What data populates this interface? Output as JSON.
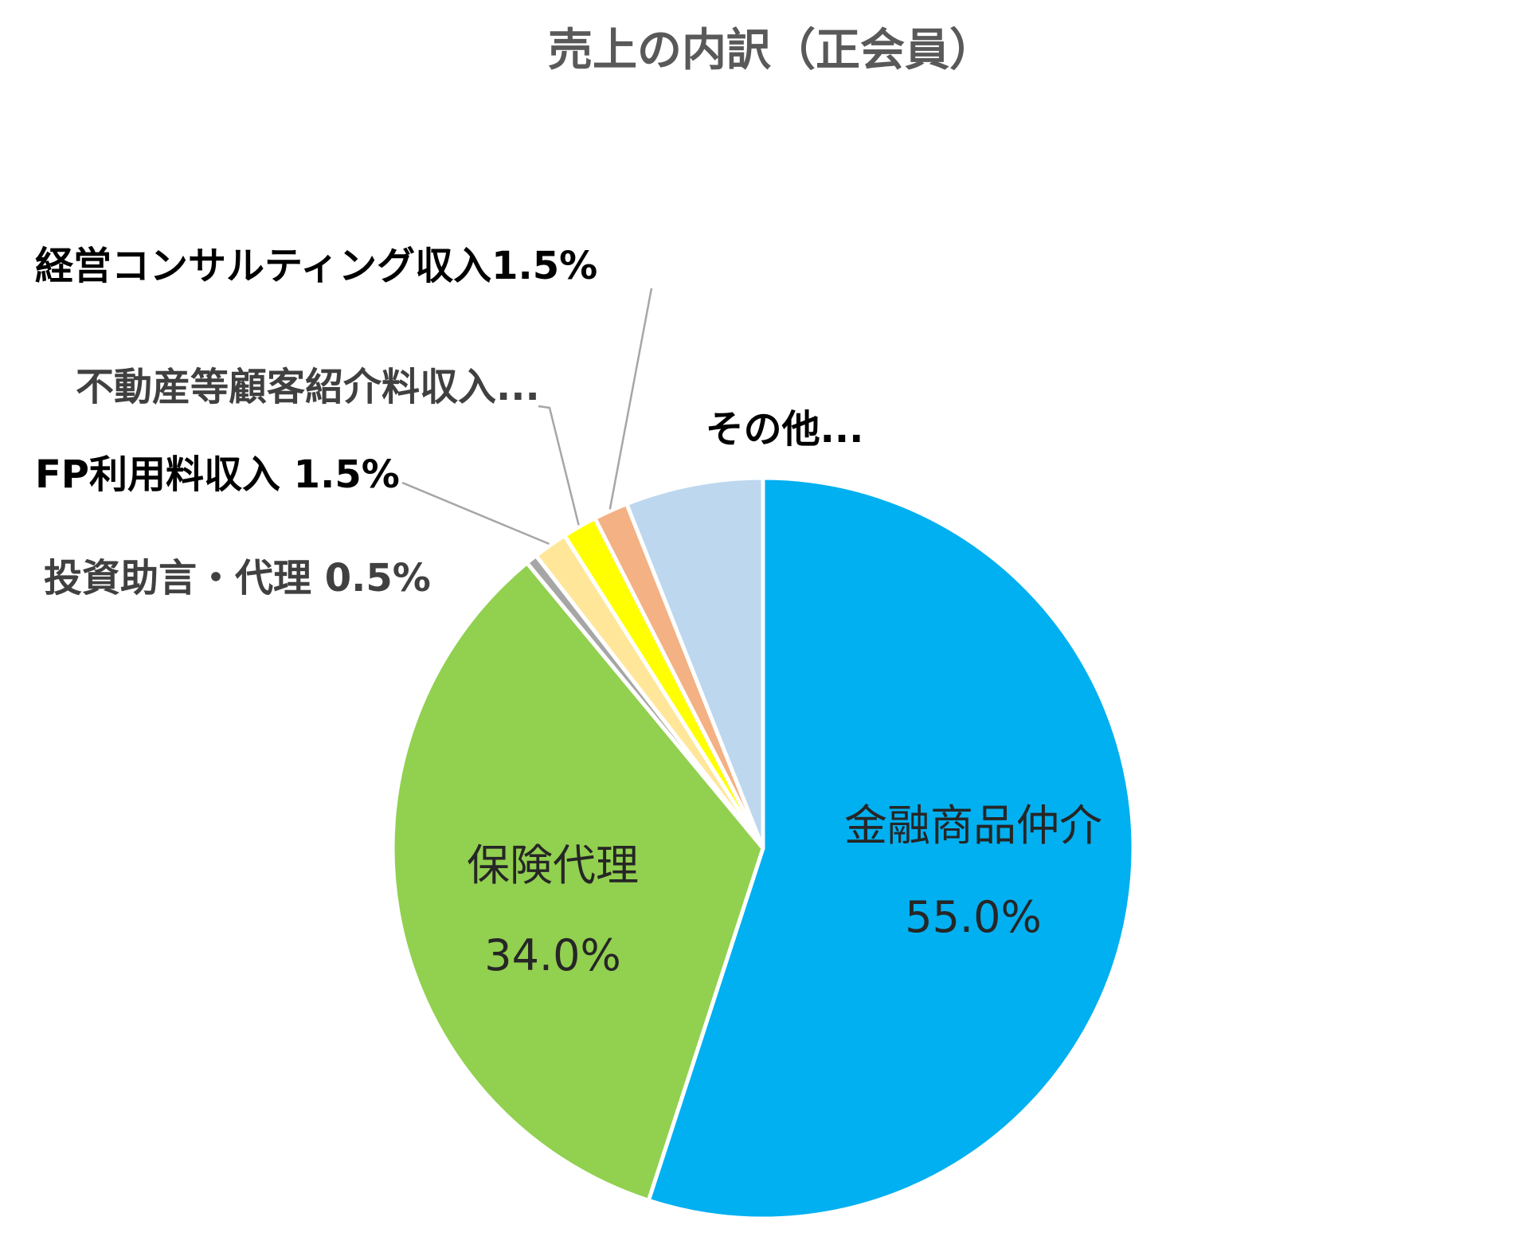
{
  "chart_data": {
    "type": "pie",
    "title": "売上の内訳（正会員）",
    "slices": [
      {
        "label": "金融商品仲介",
        "value": 55.0,
        "value_label": "55.0%",
        "color": "#00B0F0",
        "label_color": "#262626"
      },
      {
        "label": "保険代理",
        "value": 34.0,
        "value_label": "34.0%",
        "color": "#92D050",
        "label_color": "#262626"
      },
      {
        "label": "投資助言・代理 0.5%",
        "value": 0.5,
        "color": "#A6A6A6",
        "label_color": "#404040"
      },
      {
        "label": "FP利用料収入 1.5%",
        "value": 1.5,
        "color": "#FFE699",
        "label_color": "#000000"
      },
      {
        "label": "不動産等顧客紹介料収入...",
        "value": 1.5,
        "color": "#FFFF00",
        "label_color": "#404040"
      },
      {
        "label": "経営コンサルティング収入1.5%",
        "value": 1.5,
        "color": "#F4B183",
        "label_color": "#000000"
      },
      {
        "label": "その他...",
        "value": 6.0,
        "color": "#BDD7EE",
        "label_color": "#000000"
      }
    ],
    "leader_line_color": "#A6A6A6"
  }
}
